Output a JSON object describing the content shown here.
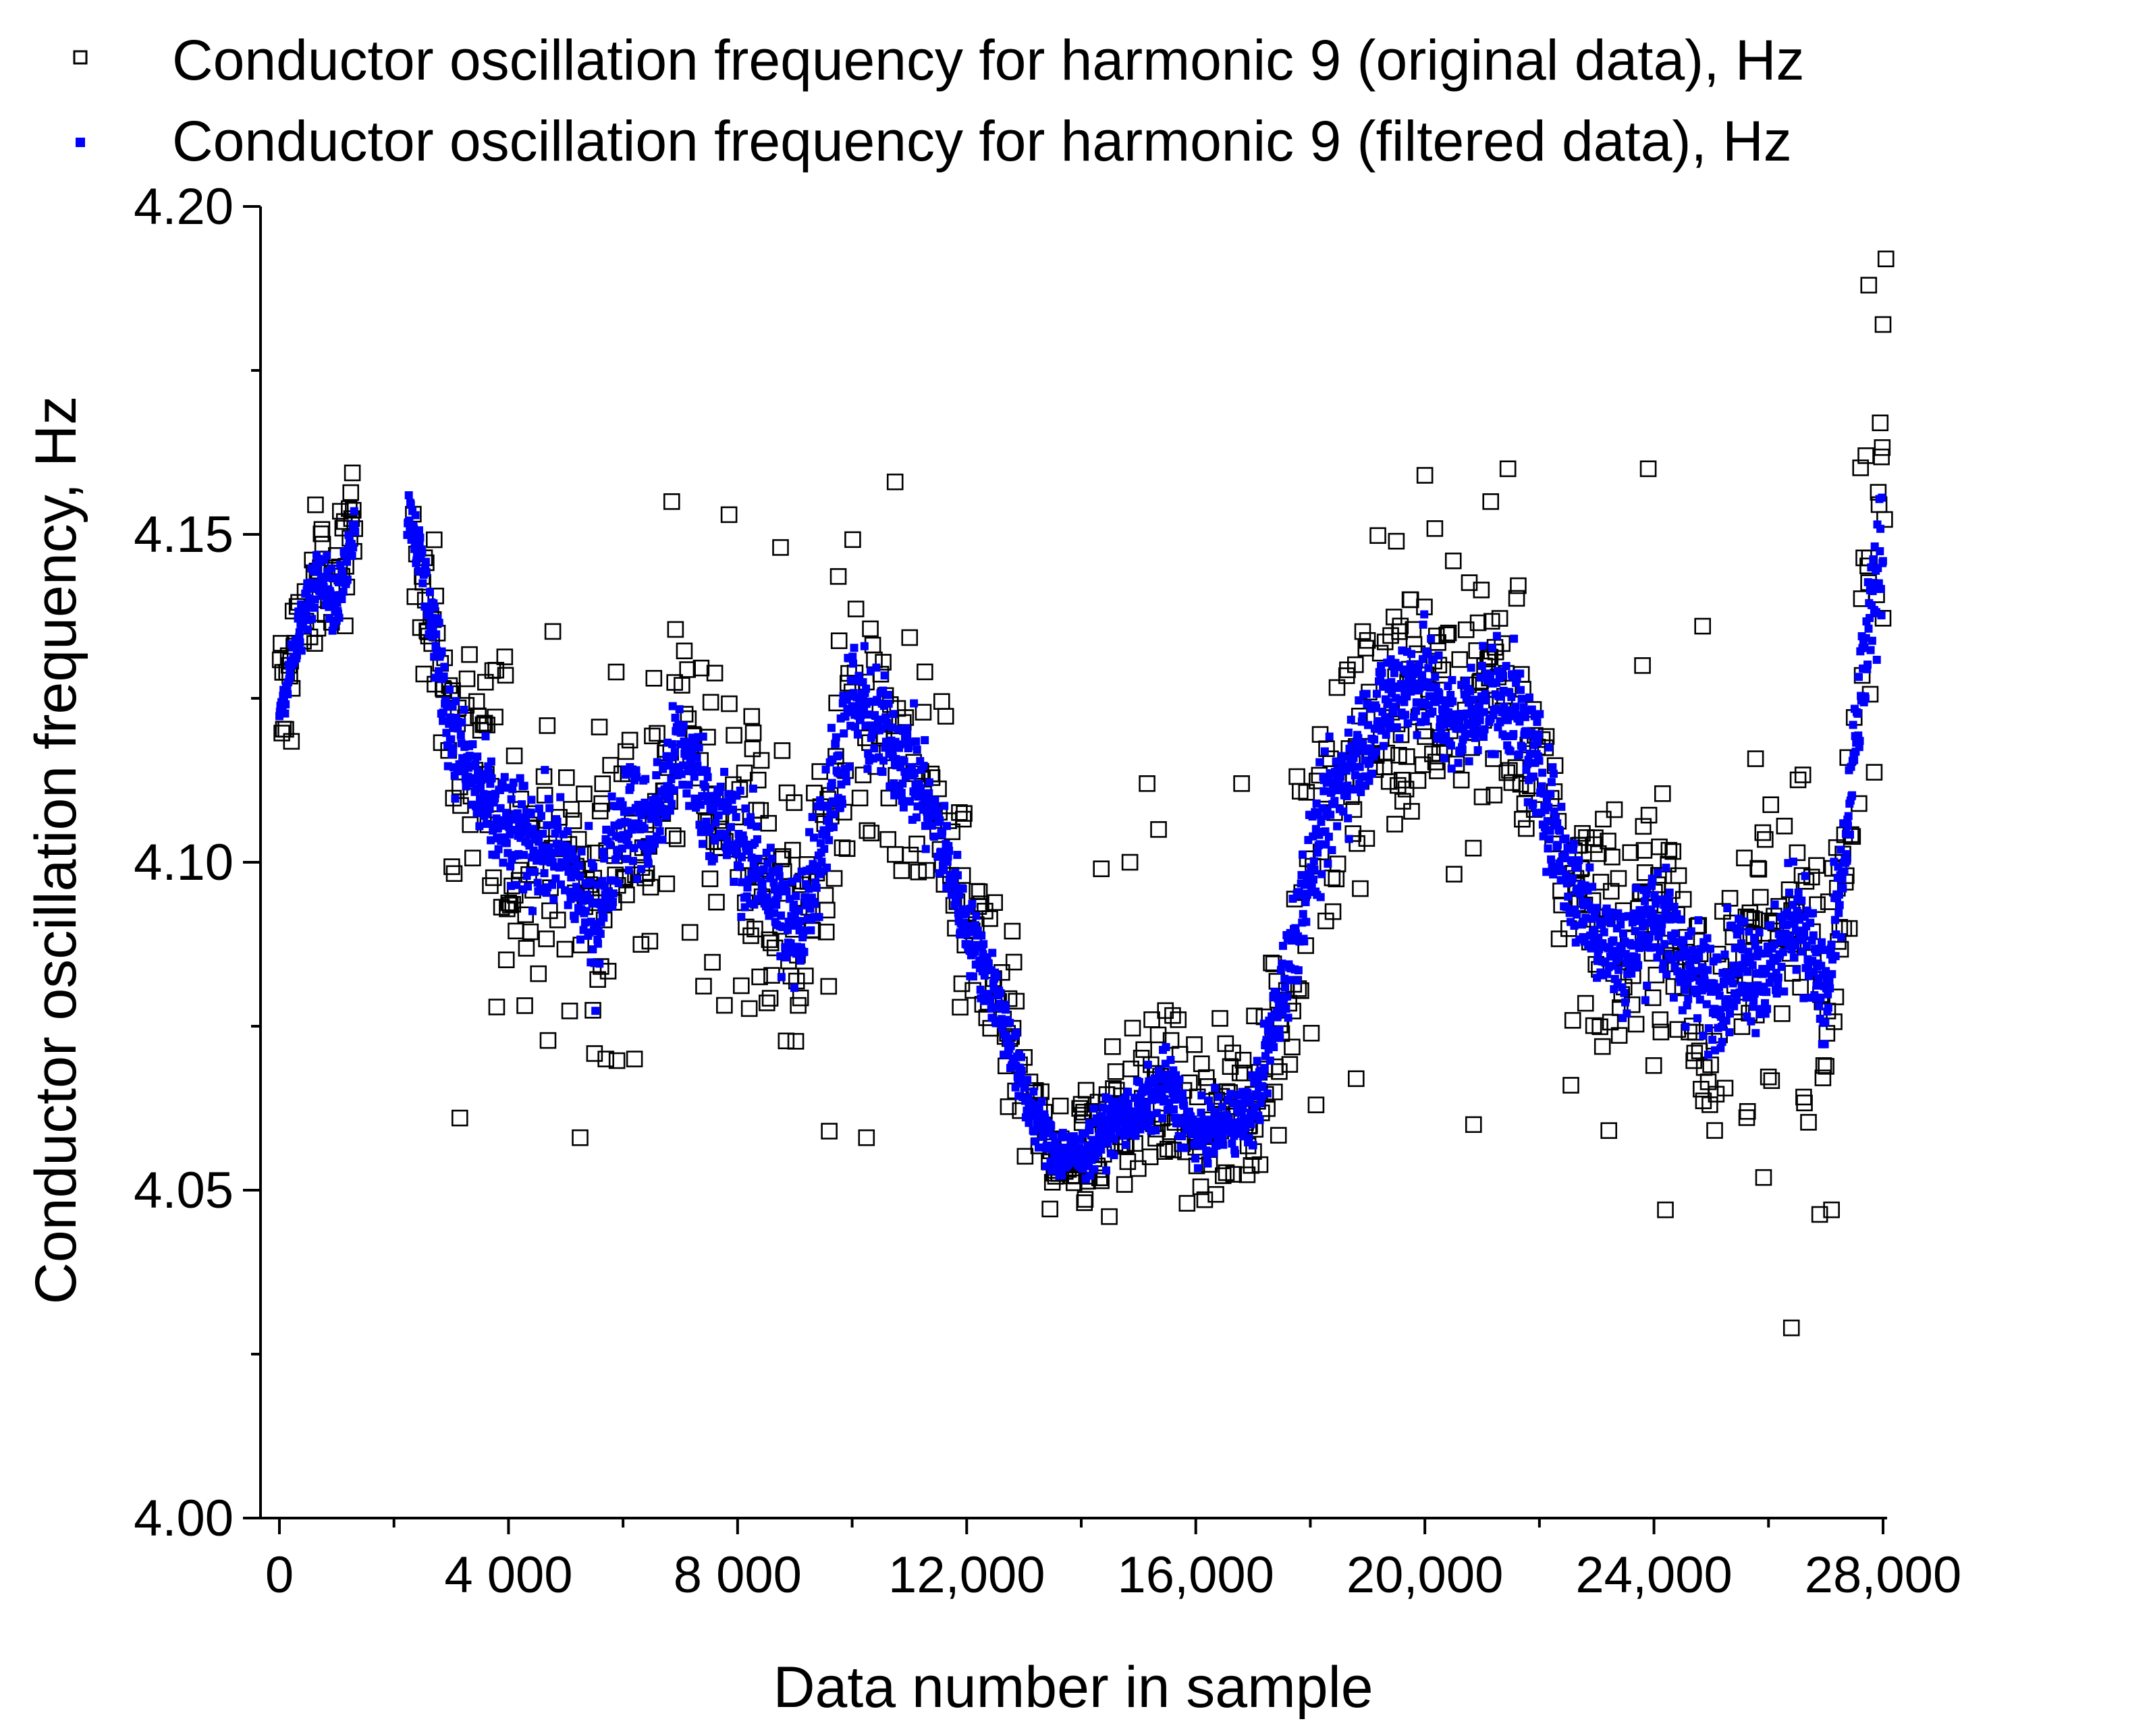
{
  "colors": {
    "original_marker": "#000000",
    "filtered_marker": "#0000ff",
    "axis": "#000000",
    "background": "#ffffff"
  },
  "chart_data": {
    "type": "scatter",
    "title": "",
    "xlabel": "Data number in sample",
    "ylabel": "Conductor oscillation frequency, Hz",
    "xlim": [
      -300,
      28300
    ],
    "ylim": [
      4.0,
      4.2
    ],
    "xticks": [
      0,
      4000,
      8000,
      12000,
      16000,
      20000,
      24000,
      28000
    ],
    "xtick_labels": [
      "0",
      "4 000",
      "8 000",
      "12,000",
      "16,000",
      "20,000",
      "24,000",
      "28,000"
    ],
    "yticks": [
      4.0,
      4.05,
      4.1,
      4.15,
      4.2
    ],
    "ytick_labels": [
      "4.00",
      "4.05",
      "4.10",
      "4.15",
      "4.20"
    ],
    "grid": false,
    "legend_position": "top",
    "series": [
      {
        "name": "Conductor oscillation frequency for harmonic 9 (original data), Hz",
        "marker": "open-square",
        "color": "#000000",
        "trend": {
          "x": [
            0,
            300,
            700,
            1000,
            1300,
            2300,
            2600,
            3000,
            3500,
            4000,
            4500,
            5000,
            5500,
            6000,
            6500,
            7000,
            7500,
            8000,
            8500,
            9000,
            9500,
            10000,
            10500,
            11000,
            11500,
            12000,
            12500,
            13000,
            13500,
            14000,
            14500,
            15000,
            15500,
            16000,
            16500,
            17000,
            17500,
            18000,
            18500,
            19000,
            19500,
            20000,
            20500,
            21000,
            21500,
            22000,
            22500,
            23000,
            23500,
            24000,
            24500,
            25000,
            25500,
            26000,
            26500,
            27000,
            27300,
            27600,
            28000
          ],
          "y": [
            4.12,
            4.133,
            4.146,
            4.139,
            4.152,
            4.152,
            4.14,
            4.12,
            4.11,
            4.104,
            4.103,
            4.101,
            4.092,
            4.108,
            4.105,
            4.118,
            4.109,
            4.103,
            4.097,
            4.088,
            4.105,
            4.125,
            4.12,
            4.115,
            4.105,
            4.09,
            4.08,
            4.065,
            4.056,
            4.055,
            4.06,
            4.062,
            4.066,
            4.058,
            4.06,
            4.062,
            4.08,
            4.1,
            4.112,
            4.12,
            4.127,
            4.128,
            4.12,
            4.125,
            4.125,
            4.113,
            4.098,
            4.09,
            4.085,
            4.093,
            4.085,
            4.08,
            4.085,
            4.083,
            4.093,
            4.078,
            4.098,
            4.125,
            4.152
          ],
          "spread": [
            0.008,
            0.009,
            0.008,
            0.009,
            0.008,
            0.006,
            0.009,
            0.014,
            0.015,
            0.015,
            0.015,
            0.015,
            0.016,
            0.016,
            0.015,
            0.015,
            0.015,
            0.015,
            0.015,
            0.016,
            0.017,
            0.015,
            0.014,
            0.014,
            0.012,
            0.01,
            0.009,
            0.008,
            0.006,
            0.006,
            0.008,
            0.008,
            0.009,
            0.008,
            0.009,
            0.009,
            0.012,
            0.014,
            0.015,
            0.016,
            0.016,
            0.015,
            0.015,
            0.015,
            0.015,
            0.015,
            0.015,
            0.015,
            0.015,
            0.015,
            0.015,
            0.015,
            0.015,
            0.016,
            0.016,
            0.017,
            0.016,
            0.018,
            0.02
          ]
        },
        "outliers": [
          {
            "x": 3150,
            "y": 4.061
          },
          {
            "x": 5250,
            "y": 4.058
          },
          {
            "x": 6850,
            "y": 4.155
          },
          {
            "x": 7850,
            "y": 4.153
          },
          {
            "x": 8750,
            "y": 4.148
          },
          {
            "x": 9600,
            "y": 4.059
          },
          {
            "x": 10250,
            "y": 4.058
          },
          {
            "x": 10750,
            "y": 4.158
          },
          {
            "x": 15150,
            "y": 4.112
          },
          {
            "x": 14850,
            "y": 4.1
          },
          {
            "x": 15350,
            "y": 4.105
          },
          {
            "x": 14350,
            "y": 4.099
          },
          {
            "x": 16800,
            "y": 4.112
          },
          {
            "x": 20000,
            "y": 4.159
          },
          {
            "x": 20850,
            "y": 4.06
          },
          {
            "x": 21150,
            "y": 4.155
          },
          {
            "x": 21450,
            "y": 4.16
          },
          {
            "x": 22550,
            "y": 4.066
          },
          {
            "x": 23900,
            "y": 4.16
          },
          {
            "x": 24200,
            "y": 4.047
          },
          {
            "x": 24850,
            "y": 4.136
          },
          {
            "x": 26400,
            "y": 4.029
          },
          {
            "x": 27100,
            "y": 4.047
          },
          {
            "x": 27700,
            "y": 4.162
          },
          {
            "x": 27750,
            "y": 4.188
          },
          {
            "x": 27950,
            "y": 4.167
          },
          {
            "x": 28000,
            "y": 4.182
          },
          {
            "x": 28050,
            "y": 4.192
          },
          {
            "x": 5700,
            "y": 4.07
          },
          {
            "x": 6200,
            "y": 4.07
          },
          {
            "x": 23800,
            "y": 4.13
          },
          {
            "x": 18800,
            "y": 4.067
          },
          {
            "x": 18100,
            "y": 4.063
          }
        ]
      },
      {
        "name": "Conductor oscillation frequency for harmonic 9 (filtered data), Hz",
        "marker": "filled-square",
        "color": "#0000ff",
        "trend": {
          "x": [
            0,
            300,
            700,
            1000,
            1300,
            2300,
            2600,
            3000,
            3500,
            4000,
            4500,
            5000,
            5500,
            6000,
            6500,
            7000,
            7500,
            8000,
            8500,
            9000,
            9500,
            10000,
            10500,
            11000,
            11500,
            12000,
            12500,
            13000,
            13500,
            14000,
            14500,
            15000,
            15500,
            16000,
            16500,
            17000,
            17500,
            18000,
            18500,
            19000,
            19500,
            20000,
            20500,
            21000,
            21500,
            22000,
            22500,
            23000,
            23500,
            24000,
            24500,
            25000,
            25500,
            26000,
            26500,
            27000,
            27300,
            27600,
            28000
          ],
          "y": [
            4.123,
            4.133,
            4.146,
            4.138,
            4.152,
            4.153,
            4.14,
            4.12,
            4.11,
            4.104,
            4.103,
            4.1,
            4.09,
            4.108,
            4.105,
            4.118,
            4.109,
            4.103,
            4.097,
            4.088,
            4.105,
            4.125,
            4.12,
            4.115,
            4.105,
            4.09,
            4.08,
            4.065,
            4.056,
            4.055,
            4.06,
            4.062,
            4.066,
            4.058,
            4.06,
            4.062,
            4.08,
            4.1,
            4.112,
            4.12,
            4.127,
            4.128,
            4.12,
            4.125,
            4.125,
            4.113,
            4.098,
            4.09,
            4.085,
            4.093,
            4.085,
            4.08,
            4.085,
            4.083,
            4.093,
            4.078,
            4.098,
            4.125,
            4.15
          ],
          "spread": [
            0.002,
            0.003,
            0.003,
            0.003,
            0.003,
            0.003,
            0.004,
            0.005,
            0.006,
            0.006,
            0.006,
            0.006,
            0.007,
            0.006,
            0.006,
            0.006,
            0.006,
            0.006,
            0.006,
            0.007,
            0.007,
            0.007,
            0.006,
            0.006,
            0.005,
            0.004,
            0.004,
            0.003,
            0.003,
            0.003,
            0.003,
            0.003,
            0.004,
            0.003,
            0.003,
            0.004,
            0.005,
            0.006,
            0.006,
            0.006,
            0.006,
            0.006,
            0.006,
            0.006,
            0.006,
            0.006,
            0.006,
            0.006,
            0.006,
            0.006,
            0.006,
            0.006,
            0.006,
            0.006,
            0.006,
            0.007,
            0.006,
            0.006,
            0.007
          ]
        },
        "outliers": []
      }
    ]
  }
}
